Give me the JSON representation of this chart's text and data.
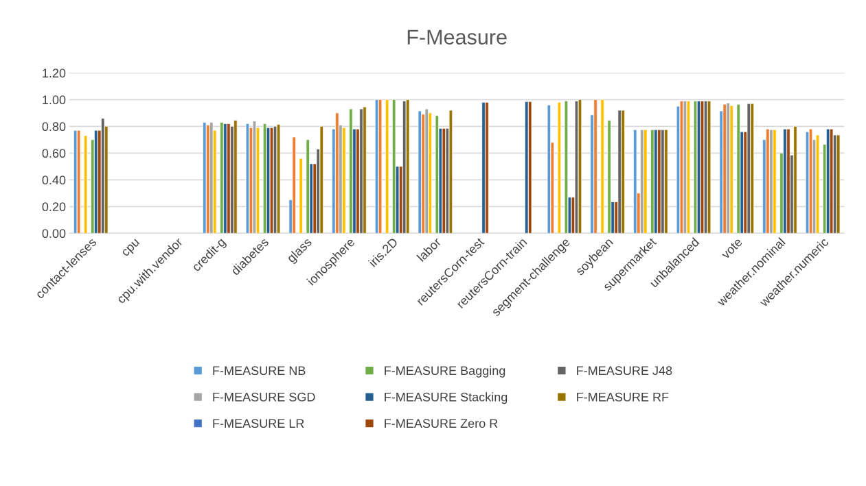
{
  "chart_data": {
    "type": "bar",
    "title": "F-Measure",
    "categories": [
      "contact-lenses",
      "cpu",
      "cpu.with.vendor",
      "credit-g",
      "diabetes",
      "glass",
      "ionosphere",
      "iris.2D",
      "labor",
      "reutersCorn-test",
      "reutersCorn-train",
      "segment-challenge",
      "soybean",
      "supermarket",
      "unbalanced",
      "vote",
      "weather.nominal",
      "weather.numeric"
    ],
    "series": [
      {
        "name": "F-MEASURE NB",
        "color": "#5b9bd5",
        "values": [
          0.77,
          null,
          null,
          0.83,
          0.82,
          0.25,
          0.78,
          1.0,
          0.915,
          null,
          null,
          0.96,
          0.885,
          0.775,
          0.95,
          0.915,
          0.7,
          0.76
        ]
      },
      {
        "color": "#ed7d31",
        "values": [
          0.77,
          null,
          null,
          0.81,
          0.79,
          0.72,
          0.9,
          1.0,
          0.89,
          null,
          null,
          0.68,
          1.0,
          0.3,
          0.99,
          0.965,
          0.78,
          0.78
        ]
      },
      {
        "name": "F-MEASURE SGD",
        "color": "#a5a5a5",
        "values": [
          null,
          null,
          null,
          0.83,
          0.84,
          null,
          0.81,
          null,
          0.93,
          null,
          null,
          null,
          null,
          0.775,
          0.99,
          0.975,
          0.775,
          0.7
        ]
      },
      {
        "color": "#ffc000",
        "values": [
          0.73,
          null,
          null,
          0.77,
          0.79,
          0.56,
          0.79,
          1.0,
          0.9,
          null,
          null,
          0.98,
          1.0,
          0.775,
          0.99,
          0.955,
          0.775,
          0.735
        ]
      },
      {
        "name": "F-MEASURE LR",
        "color": "#4472c4",
        "values": [
          null,
          null,
          null,
          null,
          null,
          null,
          null,
          null,
          null,
          null,
          null,
          null,
          null,
          null,
          null,
          null,
          null,
          null
        ]
      },
      {
        "name": "F-MEASURE Bagging",
        "color": "#70ad47",
        "values": [
          0.7,
          null,
          null,
          0.83,
          0.82,
          0.7,
          0.93,
          1.0,
          0.88,
          null,
          null,
          0.99,
          0.845,
          0.775,
          0.99,
          0.965,
          0.6,
          0.665
        ]
      },
      {
        "name": "F-MEASURE Stacking",
        "color": "#255e91",
        "values": [
          0.77,
          null,
          null,
          0.82,
          0.79,
          0.52,
          0.78,
          0.5,
          0.785,
          0.98,
          0.985,
          0.27,
          0.235,
          0.775,
          0.99,
          0.76,
          0.78,
          0.78
        ]
      },
      {
        "name": "F-MEASURE Zero R",
        "color": "#9e480e",
        "values": [
          0.77,
          null,
          null,
          0.82,
          0.79,
          0.52,
          0.78,
          0.5,
          0.785,
          0.98,
          0.985,
          0.27,
          0.235,
          0.775,
          0.99,
          0.76,
          0.78,
          0.78
        ]
      },
      {
        "name": "F-MEASURE J48",
        "color": "#636363",
        "values": [
          0.86,
          null,
          null,
          0.8,
          0.8,
          0.63,
          0.93,
          0.99,
          0.785,
          null,
          null,
          0.99,
          0.92,
          0.775,
          0.99,
          0.97,
          0.585,
          0.735
        ]
      },
      {
        "name": "F-MEASURE RF",
        "color": "#997300",
        "values": [
          0.8,
          null,
          null,
          0.845,
          0.815,
          0.8,
          0.945,
          1.0,
          0.92,
          null,
          null,
          1.0,
          0.92,
          0.775,
          0.99,
          0.97,
          0.8,
          0.735
        ]
      }
    ],
    "ylim": [
      0,
      1.2
    ],
    "yticks": [
      {
        "value": 0,
        "label": "0.00"
      },
      {
        "value": 0.2,
        "label": "0.20"
      },
      {
        "value": 0.4,
        "label": "0.40"
      },
      {
        "value": 0.6,
        "label": "0.60"
      },
      {
        "value": 0.8,
        "label": "0.80"
      },
      {
        "value": 1.0,
        "label": "1.00"
      },
      {
        "value": 1.2,
        "label": "1.20"
      }
    ],
    "grid": "y",
    "legend": "bottom"
  }
}
